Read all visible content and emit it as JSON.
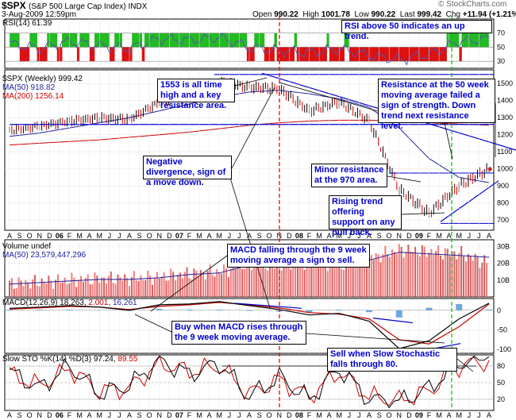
{
  "header": {
    "symbol": "$SPX",
    "name": "(S&P 500 Large Cap Index) INDX",
    "date": "3-Aug-2009 12:59pm",
    "source": "© StockCharts.com",
    "open_label": "Open",
    "open": "990.22",
    "high_label": "High",
    "high": "1001.78",
    "low_label": "Low",
    "low": "990.22",
    "last_label": "Last",
    "last": "999.42",
    "chg_label": "Chg",
    "chg": "+11.94 (+1.21%)"
  },
  "colors": {
    "up": "#000000",
    "down": "#cc0000",
    "ma50": "#2020a0",
    "ma200": "#cc0000",
    "annotation": "#0000cc",
    "red_vline": "#ff0000",
    "green_vline": "#00cc00"
  },
  "chart_data": [
    {
      "type": "area",
      "panel": "rsi",
      "legend": "RSI(14) 61.39",
      "y_ticks": [
        "70",
        "50",
        "30"
      ],
      "x": [
        "2005-08",
        "2005-11",
        "2006-02",
        "2006-05",
        "2006-08",
        "2006-11",
        "2007-02",
        "2007-05",
        "2007-08",
        "2007-11",
        "2008-02",
        "2008-05",
        "2008-08",
        "2008-11",
        "2009-02",
        "2009-05",
        "2009-08"
      ],
      "values": [
        55,
        48,
        58,
        52,
        48,
        62,
        60,
        64,
        50,
        45,
        42,
        48,
        38,
        32,
        40,
        58,
        62
      ]
    },
    {
      "type": "line",
      "panel": "price",
      "legend": [
        "$SPX (Weekly) 999.42",
        "MA(50) 918.82",
        "MA(200) 1256.14"
      ],
      "y_ticks": [
        "1500",
        "1400",
        "1300",
        "1200",
        "1100",
        "1000",
        "900",
        "800",
        "700"
      ],
      "x_ticks": [
        "A",
        "S",
        "O",
        "N",
        "D",
        "06",
        "F",
        "M",
        "A",
        "M",
        "J",
        "J",
        "A",
        "S",
        "O",
        "N",
        "D",
        "07",
        "F",
        "M",
        "A",
        "M",
        "J",
        "J",
        "A",
        "S",
        "O",
        "N",
        "D",
        "08",
        "F",
        "M",
        "A",
        "M",
        "J",
        "J",
        "A",
        "S",
        "O",
        "N",
        "D",
        "09",
        "F",
        "M",
        "A",
        "M",
        "J",
        "J",
        "A"
      ],
      "x": [
        "2005-08",
        "2005-11",
        "2006-02",
        "2006-05",
        "2006-08",
        "2006-11",
        "2007-02",
        "2007-05",
        "2007-08",
        "2007-11",
        "2008-02",
        "2008-05",
        "2008-08",
        "2008-11",
        "2009-02",
        "2009-05",
        "2009-08"
      ],
      "series": [
        {
          "name": "$SPX (Weekly)",
          "values": [
            1220,
            1250,
            1280,
            1300,
            1290,
            1390,
            1440,
            1510,
            1480,
            1470,
            1340,
            1390,
            1280,
            880,
            740,
            900,
            999
          ]
        },
        {
          "name": "MA(50)",
          "values": [
            1190,
            1210,
            1240,
            1270,
            1300,
            1340,
            1380,
            1420,
            1450,
            1460,
            1440,
            1410,
            1360,
            1240,
            1060,
            950,
            919
          ]
        },
        {
          "name": "MA(200)",
          "values": [
            1140,
            1150,
            1160,
            1170,
            1185,
            1200,
            1215,
            1235,
            1255,
            1270,
            1280,
            1285,
            1285,
            1280,
            1270,
            1262,
            1256
          ]
        }
      ]
    },
    {
      "type": "bar",
      "panel": "volume",
      "legend": [
        "Volume undef",
        "MA(50) 23,579,447,296"
      ],
      "y_ticks": [
        "30B",
        "20B",
        "10B"
      ],
      "x": [
        "2005-08",
        "2005-11",
        "2006-02",
        "2006-05",
        "2006-08",
        "2006-11",
        "2007-02",
        "2007-05",
        "2007-08",
        "2007-11",
        "2008-02",
        "2008-05",
        "2008-08",
        "2008-11",
        "2009-02",
        "2009-05",
        "2009-08"
      ],
      "values": [
        8,
        9,
        10,
        11,
        11,
        12,
        14,
        15,
        20,
        19,
        21,
        19,
        23,
        28,
        27,
        26,
        20
      ]
    },
    {
      "type": "line",
      "panel": "macd",
      "legend": [
        "MACD(12,26,9) 18.263",
        "2.001",
        "16.261"
      ],
      "y_ticks": [
        "0",
        "-50",
        "-100"
      ],
      "x": [
        "2005-08",
        "2005-11",
        "2006-02",
        "2006-05",
        "2006-08",
        "2006-11",
        "2007-02",
        "2007-05",
        "2007-08",
        "2007-11",
        "2008-02",
        "2008-05",
        "2008-08",
        "2008-11",
        "2009-02",
        "2009-05",
        "2009-08"
      ],
      "series": [
        {
          "name": "MACD",
          "values": [
            5,
            8,
            12,
            8,
            0,
            14,
            16,
            22,
            12,
            2,
            -12,
            -8,
            -28,
            -98,
            -78,
            -22,
            18
          ]
        },
        {
          "name": "Signal",
          "values": [
            3,
            6,
            10,
            8,
            2,
            10,
            14,
            20,
            14,
            6,
            -6,
            -10,
            -22,
            -75,
            -86,
            -42,
            16
          ]
        }
      ]
    },
    {
      "type": "line",
      "panel": "stochastic",
      "legend": [
        "Slow STO %K(14) %D(3) 97.24",
        "89.55"
      ],
      "y_ticks": [
        "80",
        "50",
        "20"
      ],
      "x": [
        "2005-08",
        "2005-11",
        "2006-02",
        "2006-05",
        "2006-08",
        "2006-11",
        "2007-02",
        "2007-05",
        "2007-08",
        "2007-11",
        "2008-02",
        "2008-05",
        "2008-08",
        "2008-11",
        "2009-02",
        "2009-05",
        "2009-08"
      ],
      "series": [
        {
          "name": "%K",
          "values": [
            70,
            40,
            80,
            30,
            45,
            90,
            65,
            85,
            25,
            60,
            20,
            75,
            20,
            15,
            40,
            85,
            97
          ]
        },
        {
          "name": "%D",
          "values": [
            65,
            45,
            75,
            35,
            40,
            85,
            70,
            80,
            30,
            55,
            25,
            70,
            25,
            18,
            35,
            80,
            90
          ]
        }
      ]
    }
  ],
  "annotations": {
    "rsi": "RSI above 50 indicates an up trend.",
    "alltime": "1553 is all time high and a key resistance area.",
    "resistance50": "Resistance at the 50 week moving average failed a sign of strength. Down trend next resistance level.",
    "divergence": "Negative divergence, sign of a move down.",
    "minor": "Minor resistance at the 970 area.",
    "rising": "Rising trend offering support on any pull back.",
    "macd_fall": "MACD falling through the 9 week moving average a sign to sell.",
    "macd_buy": "Buy when MACD rises through the 9 week moving average.",
    "sto_sell": "Sell when Slow Stochastic falls through 80."
  }
}
